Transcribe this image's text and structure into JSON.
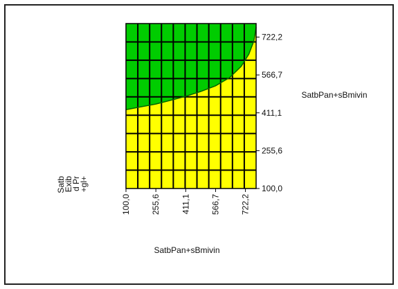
{
  "chart_data": {
    "type": "area",
    "x_ticks": [
      "100,0",
      "255,6",
      "411,1",
      "566,7",
      "722,2"
    ],
    "y_ticks": [
      "100,0",
      "255,6",
      "411,1",
      "566,7",
      "722,2"
    ],
    "xlim": [
      100.0,
      777.8
    ],
    "ylim": [
      100.0,
      777.8
    ],
    "grid": true,
    "xlabel": "SatbPan+sBmivin",
    "ylabel": "SatbPan+sBmivin",
    "z_axis_label": [
      "Satb",
      "Exib",
      "d Pr",
      "+gl+"
    ],
    "regions": [
      {
        "name": "",
        "color": "#00cc00",
        "position": "above boundary"
      },
      {
        "name": "",
        "color": "#ffff00",
        "position": "below boundary"
      }
    ],
    "boundary": {
      "x": [
        100.0,
        180.0,
        255.6,
        330.0,
        411.1,
        490.0,
        566.7,
        640.0,
        700.0,
        740.0,
        766.0,
        777.8
      ],
      "y": [
        424.0,
        436.0,
        447.0,
        462.0,
        479.0,
        499.0,
        522.0,
        556.0,
        602.0,
        652.0,
        706.0,
        762.0
      ]
    }
  }
}
